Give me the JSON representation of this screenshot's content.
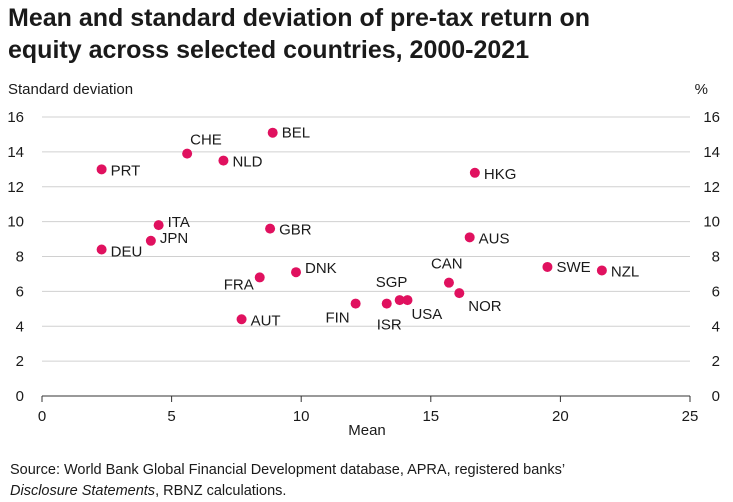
{
  "title_line1": "Mean and standard deviation of pre-tax return on",
  "title_line2": "equity across selected countries, 2000-2021",
  "source_line1": "Source: World Bank Global Financial Development database, APRA, registered banks’",
  "source_line2_italic": "Disclosure Statements",
  "source_line2_rest": ", RBNZ calculations.",
  "chart_data": {
    "type": "scatter",
    "xlabel": "Mean",
    "ylabel": "Standard deviation",
    "ylabel_right": "%",
    "xlim": [
      0,
      25
    ],
    "ylim": [
      0,
      16
    ],
    "xticks": [
      0,
      5,
      10,
      15,
      20,
      25
    ],
    "yticks": [
      0,
      2,
      4,
      6,
      8,
      10,
      12,
      14,
      16
    ],
    "grid": true,
    "marker_color": "#e0115f",
    "points": [
      {
        "label": "BEL",
        "x": 8.9,
        "y": 15.1
      },
      {
        "label": "CHE",
        "x": 5.6,
        "y": 13.9
      },
      {
        "label": "NLD",
        "x": 7.0,
        "y": 13.5
      },
      {
        "label": "PRT",
        "x": 2.3,
        "y": 13.0
      },
      {
        "label": "HKG",
        "x": 16.7,
        "y": 12.8
      },
      {
        "label": "ITA",
        "x": 4.5,
        "y": 9.8
      },
      {
        "label": "GBR",
        "x": 8.8,
        "y": 9.6
      },
      {
        "label": "AUS",
        "x": 16.5,
        "y": 9.1
      },
      {
        "label": "JPN",
        "x": 4.2,
        "y": 8.9
      },
      {
        "label": "DEU",
        "x": 2.3,
        "y": 8.4
      },
      {
        "label": "SWE",
        "x": 19.5,
        "y": 7.4
      },
      {
        "label": "NZL",
        "x": 21.6,
        "y": 7.2
      },
      {
        "label": "DNK",
        "x": 9.8,
        "y": 7.1
      },
      {
        "label": "FRA",
        "x": 8.4,
        "y": 6.8
      },
      {
        "label": "CAN",
        "x": 15.7,
        "y": 6.5
      },
      {
        "label": "NOR",
        "x": 16.1,
        "y": 5.9
      },
      {
        "label": "SGP",
        "x": 13.8,
        "y": 5.5
      },
      {
        "label": "USA",
        "x": 14.1,
        "y": 5.5
      },
      {
        "label": "FIN",
        "x": 12.1,
        "y": 5.3
      },
      {
        "label": "ISR",
        "x": 13.3,
        "y": 5.3
      },
      {
        "label": "AUT",
        "x": 7.7,
        "y": 4.4
      }
    ]
  }
}
